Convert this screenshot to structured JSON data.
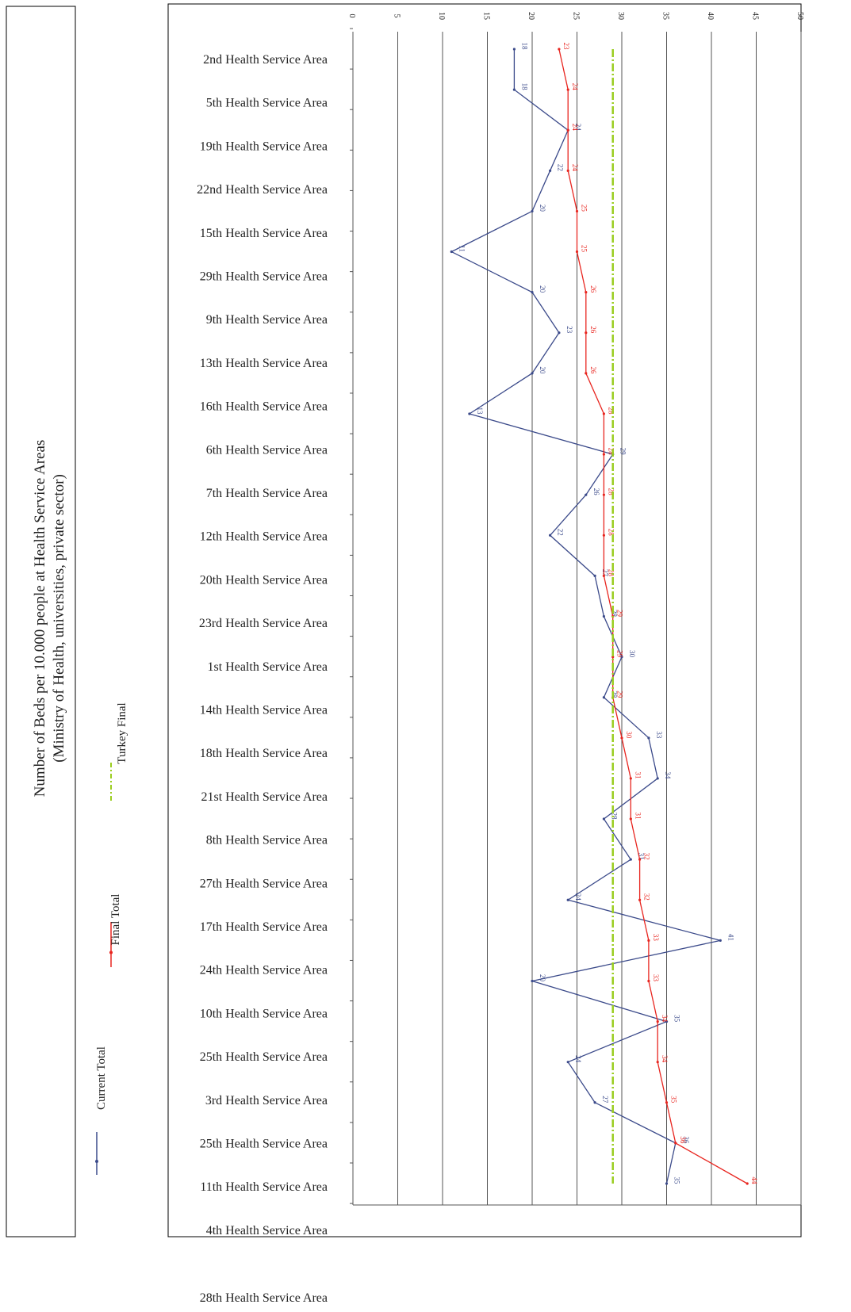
{
  "chart_data": {
    "type": "line",
    "title": "Number of Beds per 10.000 people at Health Service Areas",
    "subtitle": "(Ministry of Health, universities, private sector)",
    "categories": [
      "2nd Health Service Area",
      "5th Health Service Area",
      "19th Health Service Area",
      "22nd Health Service Area",
      "15th Health Service Area",
      "29th Health Service Area",
      "9th Health Service Area",
      "13th Health Service Area",
      "16th Health Service Area",
      "6th Health Service Area",
      "7th Health Service Area",
      "12th Health Service Area",
      "20th Health Service Area",
      "23rd Health Service Area",
      "1st Health Service Area",
      "14th Health Service Area",
      "18th Health Service Area",
      "21st Health Service Area",
      "8th Health Service Area",
      "27th Health Service Area",
      "17th Health Service Area",
      "24th Health Service Area",
      "10th Health Service Area",
      "25th Health Service Area",
      "3rd Health Service Area",
      "25th Health Service Area",
      "11th Health Service Area",
      "4th Health Service Area",
      "28th Health Service Area"
    ],
    "series": [
      {
        "name": "Current Total",
        "color": "#3b4a8a",
        "values": [
          18,
          18,
          24,
          22,
          20,
          11,
          20,
          23,
          20,
          13,
          29,
          26,
          22,
          27,
          28,
          30,
          28,
          33,
          34,
          28,
          31,
          24,
          41,
          20,
          35,
          24,
          27,
          36,
          35
        ]
      },
      {
        "name": "Final Total",
        "color": "#e8251f",
        "values": [
          23,
          24,
          24,
          24,
          25,
          25,
          26,
          26,
          26,
          28,
          28,
          28,
          28,
          28,
          29,
          29,
          29,
          30,
          31,
          31,
          32,
          32,
          33,
          33,
          34,
          34,
          35,
          36,
          44
        ]
      },
      {
        "name": "Turkey Final",
        "color": "#9acd1f",
        "values": [
          29,
          29,
          29,
          29,
          29,
          29,
          29,
          29,
          29,
          29,
          29,
          29,
          29,
          29,
          29,
          29,
          29,
          29,
          29,
          29,
          29,
          29,
          29,
          29,
          29,
          29,
          29,
          29,
          29
        ]
      }
    ],
    "xlim": [
      0,
      50
    ],
    "xticks": [
      0,
      5,
      10,
      15,
      20,
      25,
      30,
      35,
      40,
      45,
      50
    ],
    "grid": true
  }
}
